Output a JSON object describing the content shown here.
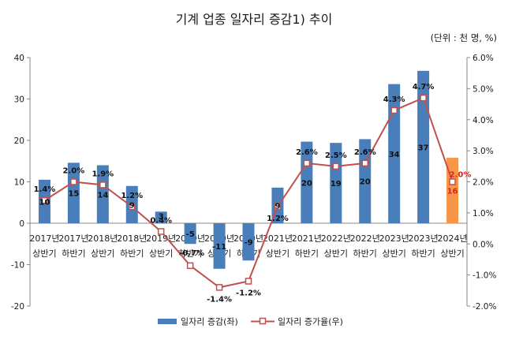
{
  "colors": {
    "bar": "#4a7ebb",
    "bar_highlight": "#f79646",
    "line": "#c0504d",
    "highlight_label": "#d9261c"
  },
  "chart_data": {
    "type": "bar",
    "title": "기계 업종 일자리 증감1) 추이",
    "unit_note": "(단위 : 천 명, %)",
    "categories": [
      [
        "2017년",
        "상반기"
      ],
      [
        "2017년",
        "하반기"
      ],
      [
        "2018년",
        "상반기"
      ],
      [
        "2018년",
        "하반기"
      ],
      [
        "2019년",
        "상반기"
      ],
      [
        "2019년",
        "하반기"
      ],
      [
        "2020년",
        "상반기"
      ],
      [
        "2020년",
        "하반기"
      ],
      [
        "2021년",
        "상반기"
      ],
      [
        "2021년",
        "하반기"
      ],
      [
        "2022년",
        "상반기"
      ],
      [
        "2022년",
        "하반기"
      ],
      [
        "2023년",
        "상반기"
      ],
      [
        "2023년",
        "하반기"
      ],
      [
        "2024년",
        "상반기"
      ]
    ],
    "series": [
      {
        "name": "일자리 증감(좌)",
        "type": "bar",
        "axis": "left",
        "values": [
          10.5,
          14.6,
          14.0,
          9.0,
          2.8,
          -5.0,
          -11.0,
          -9.0,
          8.6,
          19.7,
          19.4,
          20.3,
          33.6,
          36.8,
          15.8
        ],
        "labels": [
          "10",
          "15",
          "14",
          "9",
          "3",
          "-5",
          "-11",
          "-9",
          "9",
          "20",
          "19",
          "20",
          "34",
          "37",
          "16"
        ]
      },
      {
        "name": "일자리 증가율(우)",
        "type": "line",
        "axis": "right",
        "values": [
          1.4,
          2.0,
          1.9,
          1.2,
          0.4,
          -0.7,
          -1.4,
          -1.2,
          1.2,
          2.6,
          2.5,
          2.6,
          4.3,
          4.7,
          2.0
        ],
        "labels": [
          "1.4%",
          "2.0%",
          "1.9%",
          "1.2%",
          "0.4%",
          "-0.7%",
          "-1.4%",
          "-1.2%",
          "1.2%",
          "2.6%",
          "2.5%",
          "2.6%",
          "4.3%",
          "4.7%",
          "2.0%"
        ]
      }
    ],
    "y_left": {
      "min": -20,
      "max": 40,
      "ticks": [
        "-20",
        "-10",
        "0",
        "10",
        "20",
        "30",
        "40"
      ]
    },
    "y_right": {
      "min": -2,
      "max": 6,
      "ticks": [
        "-2.0%",
        "-1.0%",
        "0.0%",
        "1.0%",
        "2.0%",
        "3.0%",
        "4.0%",
        "5.0%",
        "6.0%"
      ]
    },
    "highlight_index": 14,
    "grid": false,
    "legend_position": "bottom"
  }
}
